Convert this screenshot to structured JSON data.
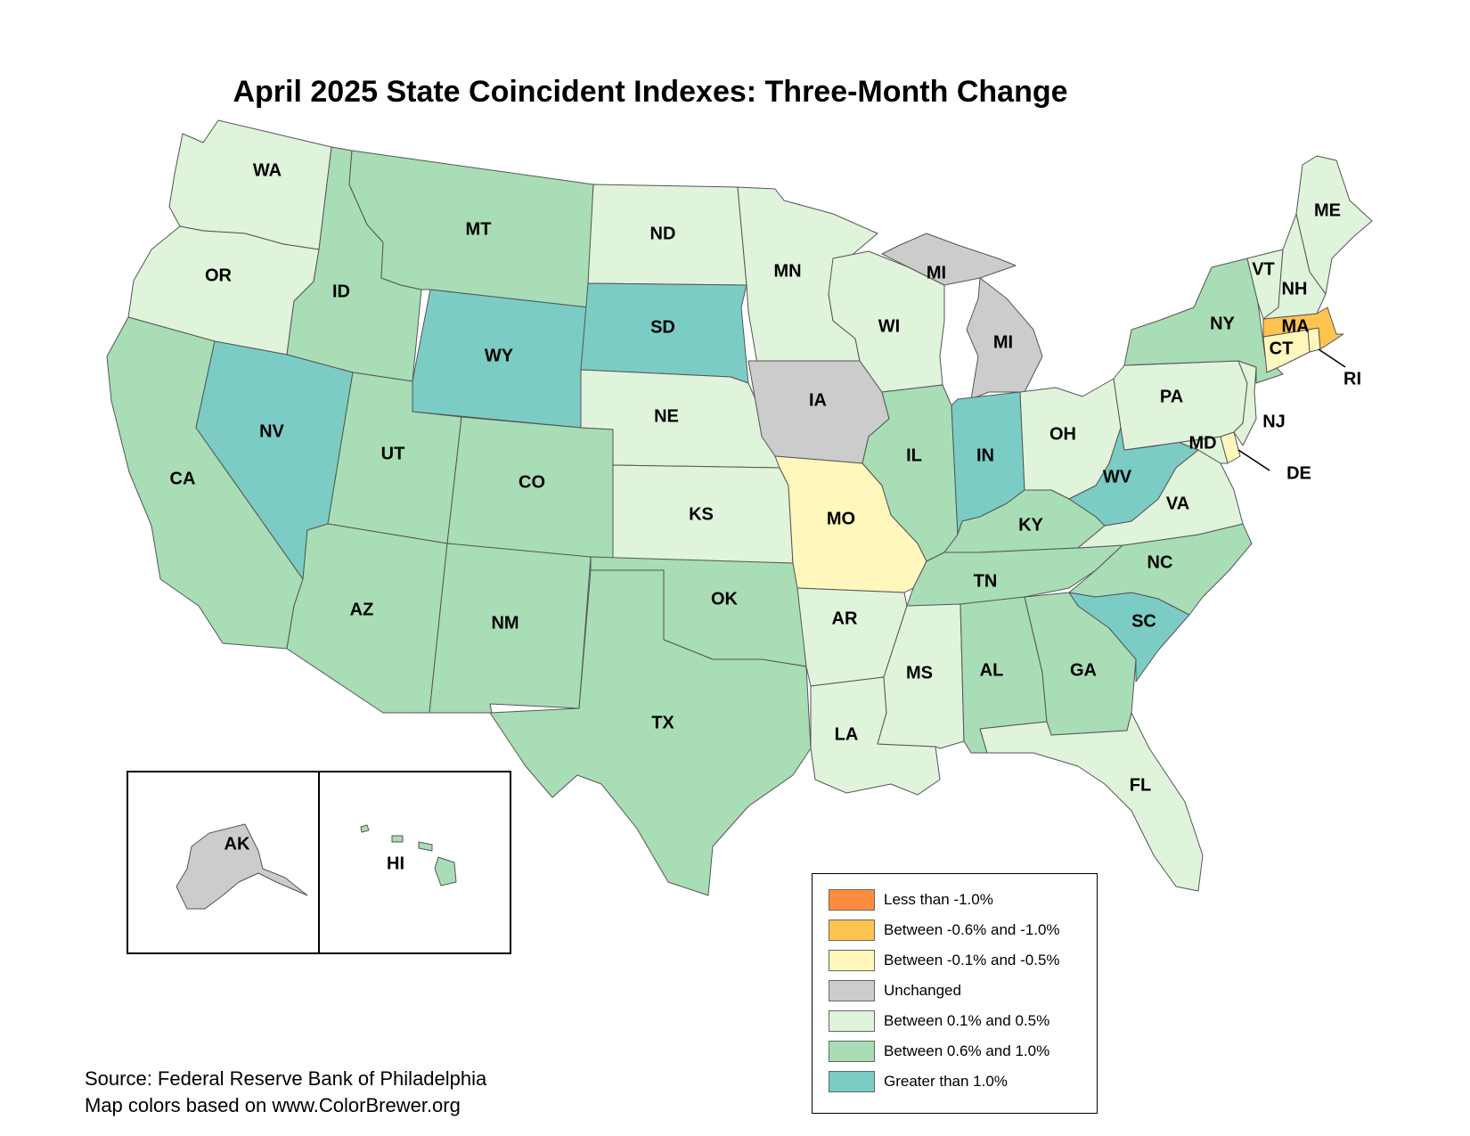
{
  "title": "April 2025 State Coincident Indexes: Three-Month Change",
  "colors": {
    "lt_neg1": "#fd8d3c",
    "neg06_10": "#fec44f",
    "neg01_05": "#fff7bc",
    "unchanged": "#cccccc",
    "pos01_05": "#e0f3db",
    "pos06_10": "#a8ddb5",
    "gt1": "#7bccc4"
  },
  "legend": {
    "items": [
      {
        "key": "lt_neg1",
        "label": "Less than -1.0%"
      },
      {
        "key": "neg06_10",
        "label": "Between -0.6% and -1.0%"
      },
      {
        "key": "neg01_05",
        "label": "Between -0.1% and -0.5%"
      },
      {
        "key": "unchanged",
        "label": "Unchanged"
      },
      {
        "key": "pos01_05",
        "label": "Between 0.1% and 0.5%"
      },
      {
        "key": "pos06_10",
        "label": "Between 0.6% and 1.0%"
      },
      {
        "key": "gt1",
        "label": "Greater than 1.0%"
      }
    ]
  },
  "states": {
    "WA": {
      "label": "WA",
      "category": "pos01_05"
    },
    "OR": {
      "label": "OR",
      "category": "pos01_05"
    },
    "CA": {
      "label": "CA",
      "category": "pos06_10"
    },
    "ID": {
      "label": "ID",
      "category": "pos06_10"
    },
    "NV": {
      "label": "NV",
      "category": "gt1"
    },
    "MT": {
      "label": "MT",
      "category": "pos06_10"
    },
    "WY": {
      "label": "WY",
      "category": "gt1"
    },
    "UT": {
      "label": "UT",
      "category": "pos06_10"
    },
    "AZ": {
      "label": "AZ",
      "category": "pos06_10"
    },
    "CO": {
      "label": "CO",
      "category": "pos06_10"
    },
    "NM": {
      "label": "NM",
      "category": "pos06_10"
    },
    "ND": {
      "label": "ND",
      "category": "pos01_05"
    },
    "SD": {
      "label": "SD",
      "category": "gt1"
    },
    "NE": {
      "label": "NE",
      "category": "pos01_05"
    },
    "KS": {
      "label": "KS",
      "category": "pos01_05"
    },
    "OK": {
      "label": "OK",
      "category": "pos06_10"
    },
    "TX": {
      "label": "TX",
      "category": "pos06_10"
    },
    "MN": {
      "label": "MN",
      "category": "pos01_05"
    },
    "IA": {
      "label": "IA",
      "category": "unchanged"
    },
    "MO": {
      "label": "MO",
      "category": "neg01_05"
    },
    "AR": {
      "label": "AR",
      "category": "pos01_05"
    },
    "LA": {
      "label": "LA",
      "category": "pos01_05"
    },
    "WI": {
      "label": "WI",
      "category": "pos01_05"
    },
    "IL": {
      "label": "IL",
      "category": "pos06_10"
    },
    "MI": {
      "label": "MI",
      "category": "unchanged"
    },
    "IN": {
      "label": "IN",
      "category": "gt1"
    },
    "OH": {
      "label": "OH",
      "category": "pos01_05"
    },
    "KY": {
      "label": "KY",
      "category": "pos06_10"
    },
    "TN": {
      "label": "TN",
      "category": "pos06_10"
    },
    "MS": {
      "label": "MS",
      "category": "pos01_05"
    },
    "AL": {
      "label": "AL",
      "category": "pos06_10"
    },
    "GA": {
      "label": "GA",
      "category": "pos06_10"
    },
    "FL": {
      "label": "FL",
      "category": "pos01_05"
    },
    "SC": {
      "label": "SC",
      "category": "gt1"
    },
    "NC": {
      "label": "NC",
      "category": "pos06_10"
    },
    "VA": {
      "label": "VA",
      "category": "pos01_05"
    },
    "WV": {
      "label": "WV",
      "category": "gt1"
    },
    "MD": {
      "label": "MD",
      "category": "pos01_05"
    },
    "DE": {
      "label": "DE",
      "category": "neg01_05"
    },
    "NJ": {
      "label": "NJ",
      "category": "pos01_05"
    },
    "PA": {
      "label": "PA",
      "category": "pos01_05"
    },
    "NY": {
      "label": "NY",
      "category": "pos06_10"
    },
    "CT": {
      "label": "CT",
      "category": "neg01_05"
    },
    "RI": {
      "label": "RI",
      "category": "neg01_05"
    },
    "MA": {
      "label": "MA",
      "category": "neg06_10"
    },
    "VT": {
      "label": "VT",
      "category": "pos01_05"
    },
    "NH": {
      "label": "NH",
      "category": "pos01_05"
    },
    "ME": {
      "label": "ME",
      "category": "pos01_05"
    },
    "AK": {
      "label": "AK",
      "category": "unchanged"
    },
    "HI": {
      "label": "HI",
      "category": "pos06_10"
    }
  },
  "source": {
    "line1": "Source: Federal Reserve Bank of Philadelphia",
    "line2": "Map colors based on www.ColorBrewer.org"
  }
}
